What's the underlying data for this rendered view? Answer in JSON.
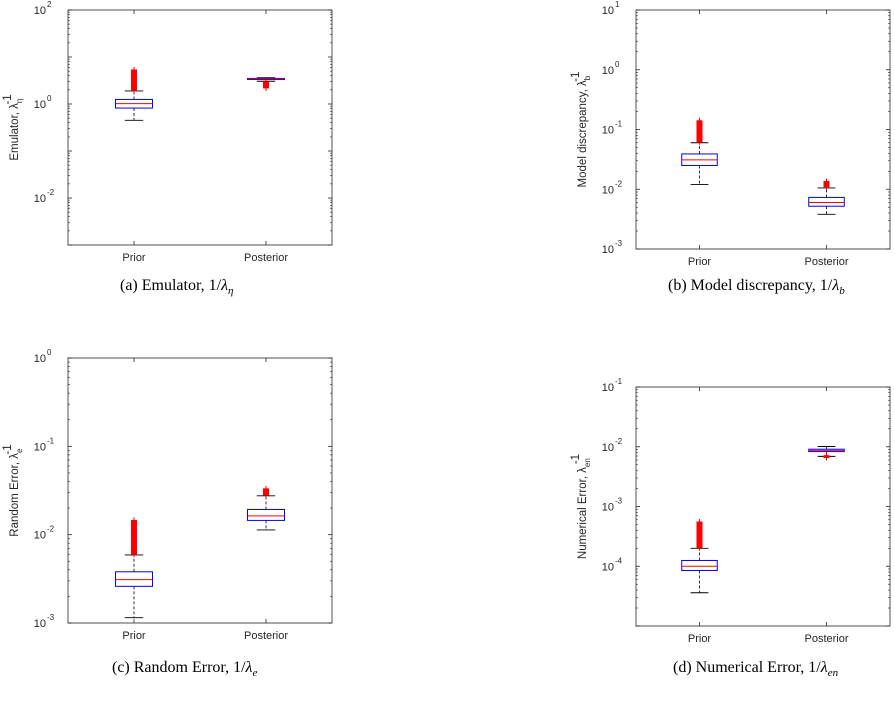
{
  "colors": {
    "box": "#0000ff",
    "median": "#ff0000",
    "outlier": "#ff0000",
    "whisker": "#000000",
    "axis": "#262626"
  },
  "chart_data": [
    {
      "type": "boxplot",
      "id": "a",
      "caption": {
        "text": "(a) Emulator, 1/",
        "symbol": "λ",
        "sub": "η"
      },
      "ylabel": {
        "text": "Emulator, ",
        "symbol": "λ",
        "sub": "η",
        "sup": "-1"
      },
      "yscale": "log",
      "ylim_exp": [
        -3,
        2
      ],
      "yticks_exp": [
        -2,
        0,
        2
      ],
      "categories": [
        "Prior",
        "Posterior"
      ],
      "boxes": [
        {
          "whisker_low": 0.45,
          "q1": 0.82,
          "median": 1.02,
          "q3": 1.25,
          "whisker_high": 1.9,
          "outliers_from": 1.95,
          "outliers_to": 5.3
        },
        {
          "whisker_low": 3.05,
          "q1": 3.32,
          "median": 3.42,
          "q3": 3.5,
          "whisker_high": 3.62,
          "outliers_from": 2.2,
          "outliers_to": 2.95
        }
      ]
    },
    {
      "type": "boxplot",
      "id": "b",
      "caption": {
        "text": "(b) Model discrepancy, 1/",
        "symbol": "λ",
        "sub": "b"
      },
      "ylabel": {
        "text": "Model discrepancy, ",
        "symbol": "λ",
        "sub": "b",
        "sup": "-1"
      },
      "yscale": "log",
      "ylim_exp": [
        -3,
        1
      ],
      "yticks_exp": [
        -3,
        -2,
        -1,
        0,
        1
      ],
      "categories": [
        "Prior",
        "Posterior"
      ],
      "boxes": [
        {
          "whisker_low": 0.012,
          "q1": 0.025,
          "median": 0.031,
          "q3": 0.039,
          "whisker_high": 0.06,
          "outliers_from": 0.062,
          "outliers_to": 0.14
        },
        {
          "whisker_low": 0.0038,
          "q1": 0.0052,
          "median": 0.006,
          "q3": 0.0073,
          "whisker_high": 0.0105,
          "outliers_from": 0.011,
          "outliers_to": 0.0135
        }
      ]
    },
    {
      "type": "boxplot",
      "id": "c",
      "caption": {
        "text": "(c) Random Error, 1/",
        "symbol": "λ",
        "sub": "e"
      },
      "ylabel": {
        "text": "Random Error, ",
        "symbol": "λ",
        "sub": "e",
        "sup": "-1"
      },
      "yscale": "log",
      "ylim_exp": [
        -3,
        0
      ],
      "yticks_exp": [
        -3,
        -2,
        -1,
        0
      ],
      "categories": [
        "Prior",
        "Posterior"
      ],
      "boxes": [
        {
          "whisker_low": 0.00115,
          "q1": 0.0026,
          "median": 0.0031,
          "q3": 0.0038,
          "whisker_high": 0.0059,
          "outliers_from": 0.006,
          "outliers_to": 0.0145
        },
        {
          "whisker_low": 0.0113,
          "q1": 0.0145,
          "median": 0.0163,
          "q3": 0.0193,
          "whisker_high": 0.0275,
          "outliers_from": 0.028,
          "outliers_to": 0.033
        }
      ]
    },
    {
      "type": "boxplot",
      "id": "d",
      "caption": {
        "text": "(d) Numerical Error, 1/",
        "symbol": "λ",
        "sub": "en"
      },
      "ylabel": {
        "text": "Numerical Error, ",
        "symbol": "λ",
        "sub": "en",
        "sup": "-1"
      },
      "yscale": "log",
      "ylim_exp": [
        -5,
        -1
      ],
      "yticks_exp": [
        -4,
        -3,
        -2,
        -1
      ],
      "categories": [
        "Prior",
        "Posterior"
      ],
      "boxes": [
        {
          "whisker_low": 3.6e-05,
          "q1": 8.5e-05,
          "median": 0.0001,
          "q3": 0.000125,
          "whisker_high": 0.0002,
          "outliers_from": 0.000205,
          "outliers_to": 0.00055
        },
        {
          "whisker_low": 0.0069,
          "q1": 0.0083,
          "median": 0.0087,
          "q3": 0.0091,
          "whisker_high": 0.0101,
          "outliers_from": 0.0066,
          "outliers_to": 0.0071
        }
      ]
    }
  ]
}
